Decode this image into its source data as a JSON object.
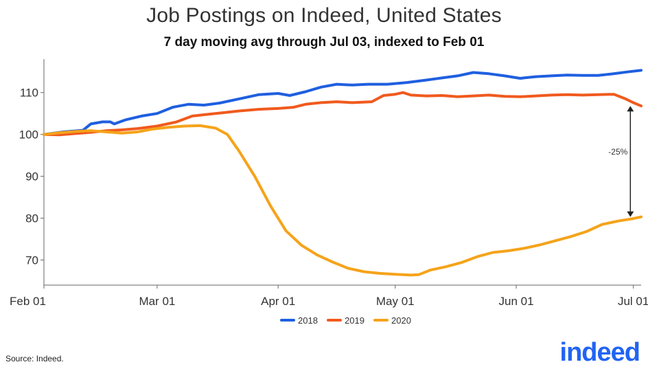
{
  "chart_data": {
    "type": "line",
    "title": "Job Postings on Indeed, United States",
    "subtitle": "7 day moving avg through Jul 03, indexed to Feb 01",
    "x_tick_labels": [
      "Feb 01",
      "Mar 01",
      "Apr 01",
      "May 01",
      "Jun 01",
      "Jul 01"
    ],
    "x_tick_days": [
      0,
      29,
      60,
      90,
      121,
      151
    ],
    "x_range_days": [
      0,
      153
    ],
    "y_ticks": [
      70,
      80,
      90,
      100,
      110
    ],
    "ylim": [
      64,
      118
    ],
    "grid": false,
    "legend_position": "bottom-center",
    "series": [
      {
        "name": "2018",
        "color": "#1f5fe0",
        "points": [
          [
            0,
            100
          ],
          [
            5,
            100.6
          ],
          [
            10,
            101
          ],
          [
            12,
            102.5
          ],
          [
            15,
            103
          ],
          [
            17,
            103
          ],
          [
            18,
            102.5
          ],
          [
            21,
            103.5
          ],
          [
            25,
            104.4
          ],
          [
            29,
            105
          ],
          [
            33,
            106.5
          ],
          [
            37,
            107.2
          ],
          [
            41,
            107
          ],
          [
            45,
            107.5
          ],
          [
            50,
            108.5
          ],
          [
            55,
            109.5
          ],
          [
            60,
            109.8
          ],
          [
            63,
            109.3
          ],
          [
            67,
            110.2
          ],
          [
            71,
            111.3
          ],
          [
            75,
            112
          ],
          [
            79,
            111.8
          ],
          [
            83,
            112
          ],
          [
            88,
            112
          ],
          [
            93,
            112.4
          ],
          [
            98,
            113
          ],
          [
            102,
            113.5
          ],
          [
            106,
            114
          ],
          [
            110,
            114.8
          ],
          [
            114,
            114.5
          ],
          [
            118,
            114
          ],
          [
            122,
            113.4
          ],
          [
            126,
            113.8
          ],
          [
            130,
            114
          ],
          [
            134,
            114.2
          ],
          [
            138,
            114.1
          ],
          [
            142,
            114.1
          ],
          [
            146,
            114.5
          ],
          [
            150,
            115
          ],
          [
            153,
            115.3
          ]
        ]
      },
      {
        "name": "2019",
        "color": "#f05a1e",
        "points": [
          [
            0,
            100
          ],
          [
            4,
            99.9
          ],
          [
            8,
            100.2
          ],
          [
            12,
            100.5
          ],
          [
            16,
            100.9
          ],
          [
            20,
            101.1
          ],
          [
            24,
            101.4
          ],
          [
            29,
            102
          ],
          [
            34,
            103
          ],
          [
            38,
            104.4
          ],
          [
            42,
            104.8
          ],
          [
            46,
            105.2
          ],
          [
            50,
            105.6
          ],
          [
            55,
            106
          ],
          [
            60,
            106.2
          ],
          [
            64,
            106.5
          ],
          [
            67,
            107.2
          ],
          [
            71,
            107.6
          ],
          [
            75,
            107.8
          ],
          [
            79,
            107.6
          ],
          [
            84,
            107.8
          ],
          [
            87,
            109.3
          ],
          [
            90,
            109.6
          ],
          [
            92,
            110
          ],
          [
            94,
            109.4
          ],
          [
            98,
            109.2
          ],
          [
            102,
            109.3
          ],
          [
            106,
            109
          ],
          [
            110,
            109.2
          ],
          [
            114,
            109.4
          ],
          [
            118,
            109.1
          ],
          [
            122,
            109
          ],
          [
            126,
            109.2
          ],
          [
            130,
            109.4
          ],
          [
            134,
            109.5
          ],
          [
            138,
            109.4
          ],
          [
            142,
            109.5
          ],
          [
            146,
            109.6
          ],
          [
            149,
            108.5
          ],
          [
            151,
            107.6
          ],
          [
            153,
            106.8
          ]
        ]
      },
      {
        "name": "2020",
        "color": "#f5a31a",
        "points": [
          [
            0,
            100
          ],
          [
            4,
            100.4
          ],
          [
            8,
            100.7
          ],
          [
            12,
            100.9
          ],
          [
            16,
            100.6
          ],
          [
            20,
            100.3
          ],
          [
            24,
            100.6
          ],
          [
            28,
            101.3
          ],
          [
            32,
            101.7
          ],
          [
            36,
            102
          ],
          [
            40,
            102.1
          ],
          [
            44,
            101.5
          ],
          [
            47,
            100
          ],
          [
            50,
            96
          ],
          [
            54,
            90
          ],
          [
            58,
            83
          ],
          [
            62,
            77
          ],
          [
            66,
            73.5
          ],
          [
            70,
            71.2
          ],
          [
            74,
            69.5
          ],
          [
            78,
            68
          ],
          [
            82,
            67.2
          ],
          [
            86,
            66.8
          ],
          [
            90,
            66.6
          ],
          [
            94,
            66.4
          ],
          [
            96,
            66.5
          ],
          [
            99,
            67.6
          ],
          [
            103,
            68.4
          ],
          [
            107,
            69.4
          ],
          [
            111,
            70.8
          ],
          [
            115,
            71.8
          ],
          [
            119,
            72.2
          ],
          [
            123,
            72.8
          ],
          [
            127,
            73.6
          ],
          [
            131,
            74.6
          ],
          [
            135,
            75.6
          ],
          [
            139,
            76.8
          ],
          [
            143,
            78.5
          ],
          [
            147,
            79.3
          ],
          [
            151,
            79.9
          ],
          [
            153,
            80.3
          ]
        ]
      }
    ],
    "annotation": {
      "label": "-25%",
      "x_day": 152,
      "y_from": 106.8,
      "y_to": 80.3
    }
  },
  "source": "Source: Indeed.",
  "logo_text": "indeed"
}
